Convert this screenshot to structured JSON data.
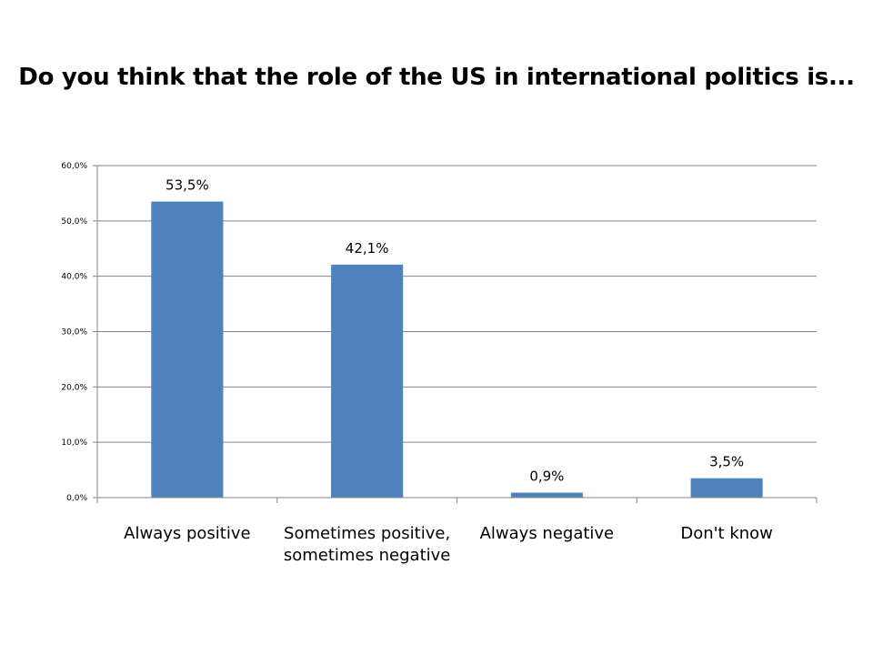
{
  "title": "Do you think that the role of the US in international politics is...",
  "chart_data": {
    "type": "bar",
    "title": "Do you think that the role of the US in international politics is...",
    "categories": [
      [
        "Always positive"
      ],
      [
        "Sometimes positive,",
        "sometimes negative"
      ],
      [
        "Always negative"
      ],
      [
        "Don't know"
      ]
    ],
    "values": [
      53.5,
      42.1,
      0.9,
      3.5
    ],
    "data_labels": [
      "53,5%",
      "42,1%",
      "0,9%",
      "3,5%"
    ],
    "ylim": [
      0,
      60
    ],
    "yticks": [
      0,
      10,
      20,
      30,
      40,
      50,
      60
    ],
    "ytick_labels": [
      "0,0%",
      "10,0%",
      "20,0%",
      "30,0%",
      "40,0%",
      "50,0%",
      "60,0%"
    ],
    "xlabel": "",
    "ylabel": "",
    "grid": true,
    "legend": "none",
    "colors": {
      "bar": "#4F81BD",
      "grid": "#868686",
      "axis": "#868686"
    }
  }
}
